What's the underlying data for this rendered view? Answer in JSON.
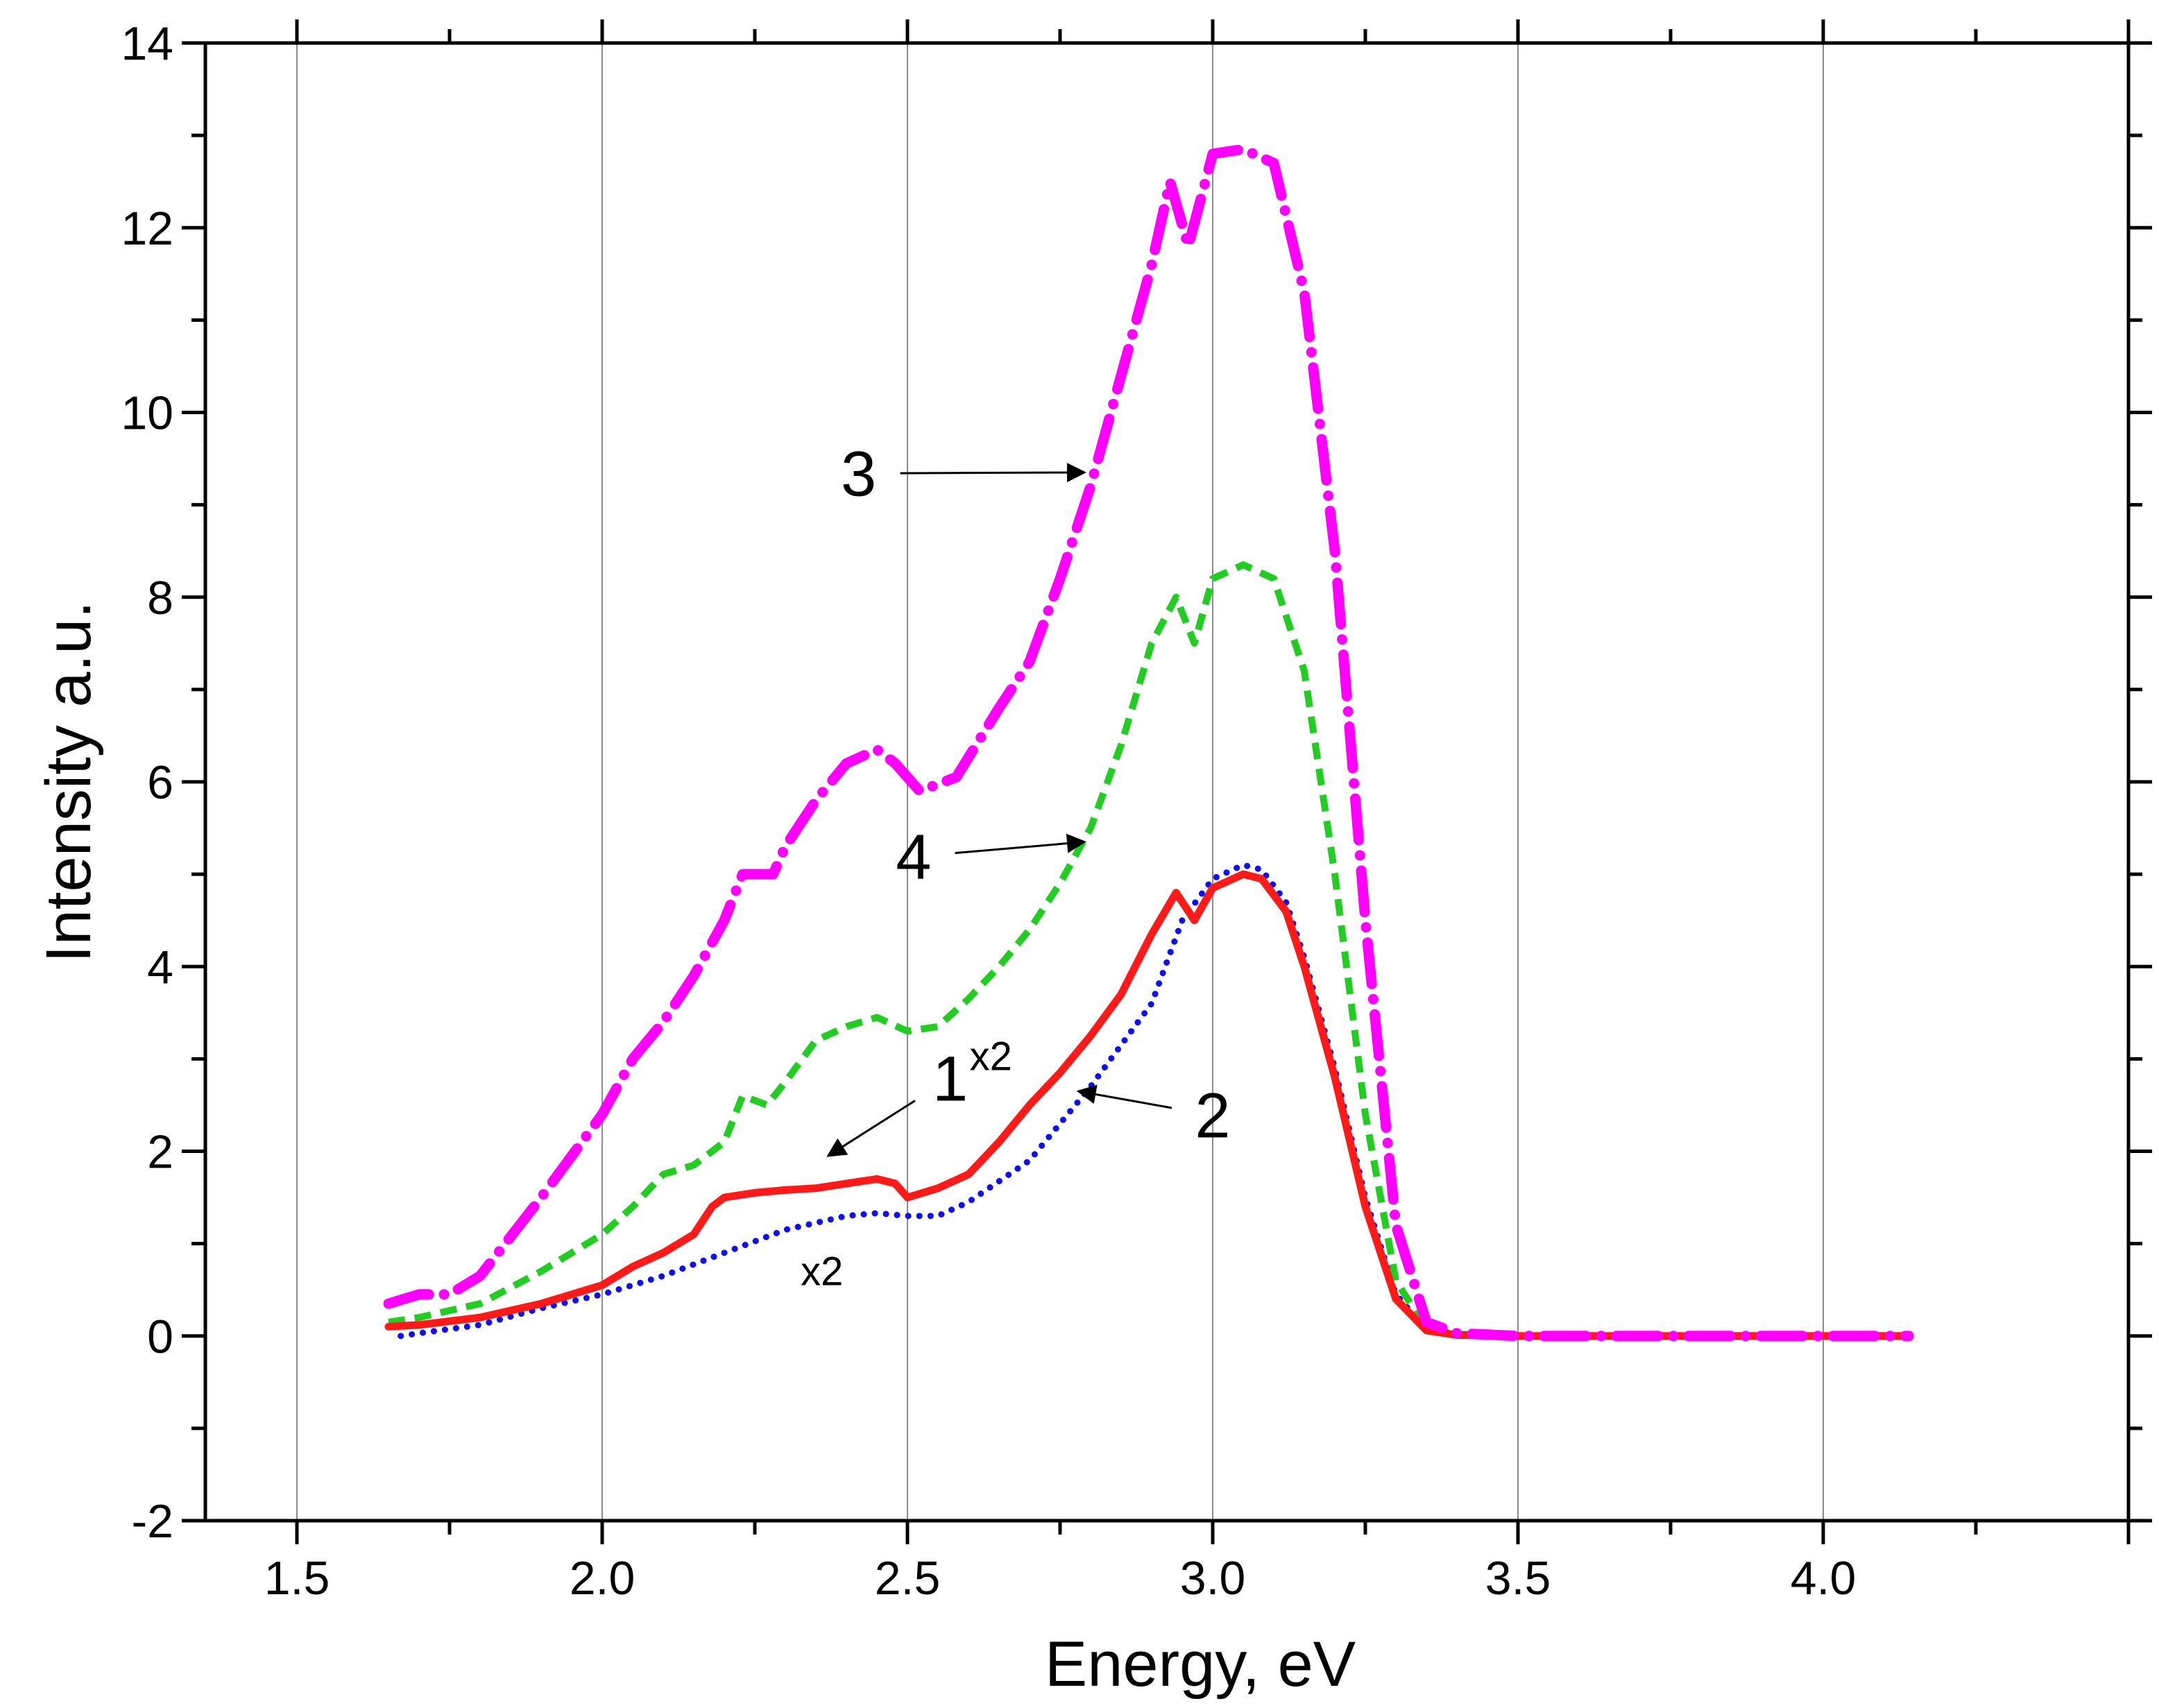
{
  "chart_data": {
    "type": "line",
    "title": "",
    "xlabel": "Energy, eV",
    "ylabel": "Intensity a.u.",
    "xlim": [
      1.35,
      4.5
    ],
    "ylim": [
      -2,
      14
    ],
    "grid_x": true,
    "x_ticks": [
      1.5,
      2.0,
      2.5,
      3.0,
      3.5,
      4.0
    ],
    "x_tick_labels": [
      "1.5",
      "2.0",
      "2.5",
      "3.0",
      "3.5",
      "4.0"
    ],
    "y_ticks": [
      -2,
      0,
      2,
      4,
      6,
      8,
      10,
      12,
      14
    ],
    "y_tick_labels": [
      "-2",
      "0",
      "2",
      "4",
      "6",
      "8",
      "10",
      "12",
      "14"
    ],
    "series": [
      {
        "name": "1",
        "color": "#ff1a1a",
        "style": "solid",
        "x": [
          1.65,
          1.7,
          1.8,
          1.9,
          2.0,
          2.05,
          2.1,
          2.15,
          2.18,
          2.2,
          2.25,
          2.3,
          2.35,
          2.4,
          2.45,
          2.48,
          2.5,
          2.55,
          2.6,
          2.65,
          2.7,
          2.75,
          2.8,
          2.85,
          2.9,
          2.94,
          2.97,
          3.0,
          3.05,
          3.08,
          3.12,
          3.15,
          3.2,
          3.25,
          3.3,
          3.35,
          3.4,
          3.5,
          3.7,
          4.0,
          4.13
        ],
        "values": [
          0.1,
          0.12,
          0.2,
          0.35,
          0.55,
          0.75,
          0.9,
          1.1,
          1.4,
          1.5,
          1.55,
          1.58,
          1.6,
          1.65,
          1.7,
          1.65,
          1.5,
          1.6,
          1.75,
          2.1,
          2.5,
          2.85,
          3.25,
          3.7,
          4.35,
          4.8,
          4.5,
          4.85,
          5.0,
          4.95,
          4.6,
          4.0,
          2.8,
          1.4,
          0.4,
          0.06,
          0.01,
          0.0,
          0.0,
          0.0,
          0.0
        ]
      },
      {
        "name": "2",
        "color": "#1010ee",
        "style": "dotted",
        "x": [
          1.67,
          1.7,
          1.8,
          1.9,
          2.0,
          2.1,
          2.2,
          2.3,
          2.4,
          2.45,
          2.5,
          2.55,
          2.6,
          2.7,
          2.8,
          2.9,
          2.95,
          3.0,
          3.05,
          3.08,
          3.12,
          3.15,
          3.2,
          3.25,
          3.3,
          3.35,
          3.4,
          3.5,
          4.0,
          4.13
        ],
        "values": [
          0.0,
          0.03,
          0.12,
          0.3,
          0.45,
          0.65,
          0.9,
          1.15,
          1.3,
          1.33,
          1.3,
          1.3,
          1.45,
          1.9,
          2.7,
          3.6,
          4.5,
          4.95,
          5.1,
          5.05,
          4.7,
          4.1,
          2.9,
          1.5,
          0.45,
          0.07,
          0.01,
          0.0,
          0.0,
          0.0
        ]
      },
      {
        "name": "3",
        "color": "#ff00ff",
        "style": "dashdot",
        "x": [
          1.65,
          1.7,
          1.75,
          1.8,
          1.9,
          2.0,
          2.05,
          2.1,
          2.15,
          2.2,
          2.23,
          2.28,
          2.3,
          2.35,
          2.4,
          2.45,
          2.48,
          2.52,
          2.58,
          2.65,
          2.7,
          2.75,
          2.8,
          2.85,
          2.9,
          2.93,
          2.96,
          3.0,
          3.05,
          3.1,
          3.15,
          3.2,
          3.25,
          3.3,
          3.35,
          3.4,
          3.5,
          3.7,
          4.0,
          4.14
        ],
        "values": [
          0.35,
          0.45,
          0.45,
          0.65,
          1.5,
          2.4,
          3.0,
          3.4,
          3.9,
          4.5,
          5.0,
          5.0,
          5.3,
          5.8,
          6.2,
          6.35,
          6.2,
          5.9,
          6.05,
          6.8,
          7.3,
          8.2,
          9.2,
          10.4,
          11.6,
          12.5,
          11.8,
          12.8,
          12.85,
          12.7,
          11.3,
          8.5,
          4.5,
          1.2,
          0.15,
          0.03,
          0.0,
          0.0,
          0.0,
          0.0
        ]
      },
      {
        "name": "4",
        "color": "#22cc22",
        "style": "dashed",
        "x": [
          1.65,
          1.7,
          1.8,
          1.9,
          2.0,
          2.05,
          2.1,
          2.15,
          2.2,
          2.23,
          2.27,
          2.3,
          2.35,
          2.4,
          2.45,
          2.5,
          2.55,
          2.6,
          2.65,
          2.7,
          2.75,
          2.8,
          2.85,
          2.9,
          2.94,
          2.97,
          3.0,
          3.05,
          3.1,
          3.15,
          3.2,
          3.25,
          3.3,
          3.35,
          3.4,
          3.5,
          3.7,
          4.0,
          4.13
        ],
        "values": [
          0.15,
          0.2,
          0.35,
          0.7,
          1.1,
          1.4,
          1.75,
          1.85,
          2.1,
          2.6,
          2.5,
          2.75,
          3.2,
          3.35,
          3.45,
          3.3,
          3.35,
          3.65,
          4.0,
          4.4,
          4.9,
          5.5,
          6.4,
          7.5,
          8.0,
          7.5,
          8.2,
          8.35,
          8.2,
          7.2,
          5.0,
          2.4,
          0.6,
          0.08,
          0.02,
          0.0,
          0.0,
          0.0,
          0.0
        ]
      }
    ],
    "annotations": [
      {
        "label": "3",
        "text_at": [
          2.42,
          9.1
        ],
        "arrow_to": [
          2.79,
          9.35
        ]
      },
      {
        "label": "4",
        "text_at": [
          2.51,
          4.95
        ],
        "arrow_to": [
          2.79,
          5.35
        ]
      },
      {
        "label": "1",
        "superscript": "x2",
        "text_at": [
          2.57,
          2.55
        ],
        "arrow_to": [
          2.37,
          1.95
        ]
      },
      {
        "label": "2",
        "text_at": [
          3.0,
          2.15
        ],
        "arrow_to": [
          2.78,
          2.65
        ]
      },
      {
        "label": "x2",
        "text_at": [
          2.36,
          0.55
        ]
      }
    ]
  }
}
